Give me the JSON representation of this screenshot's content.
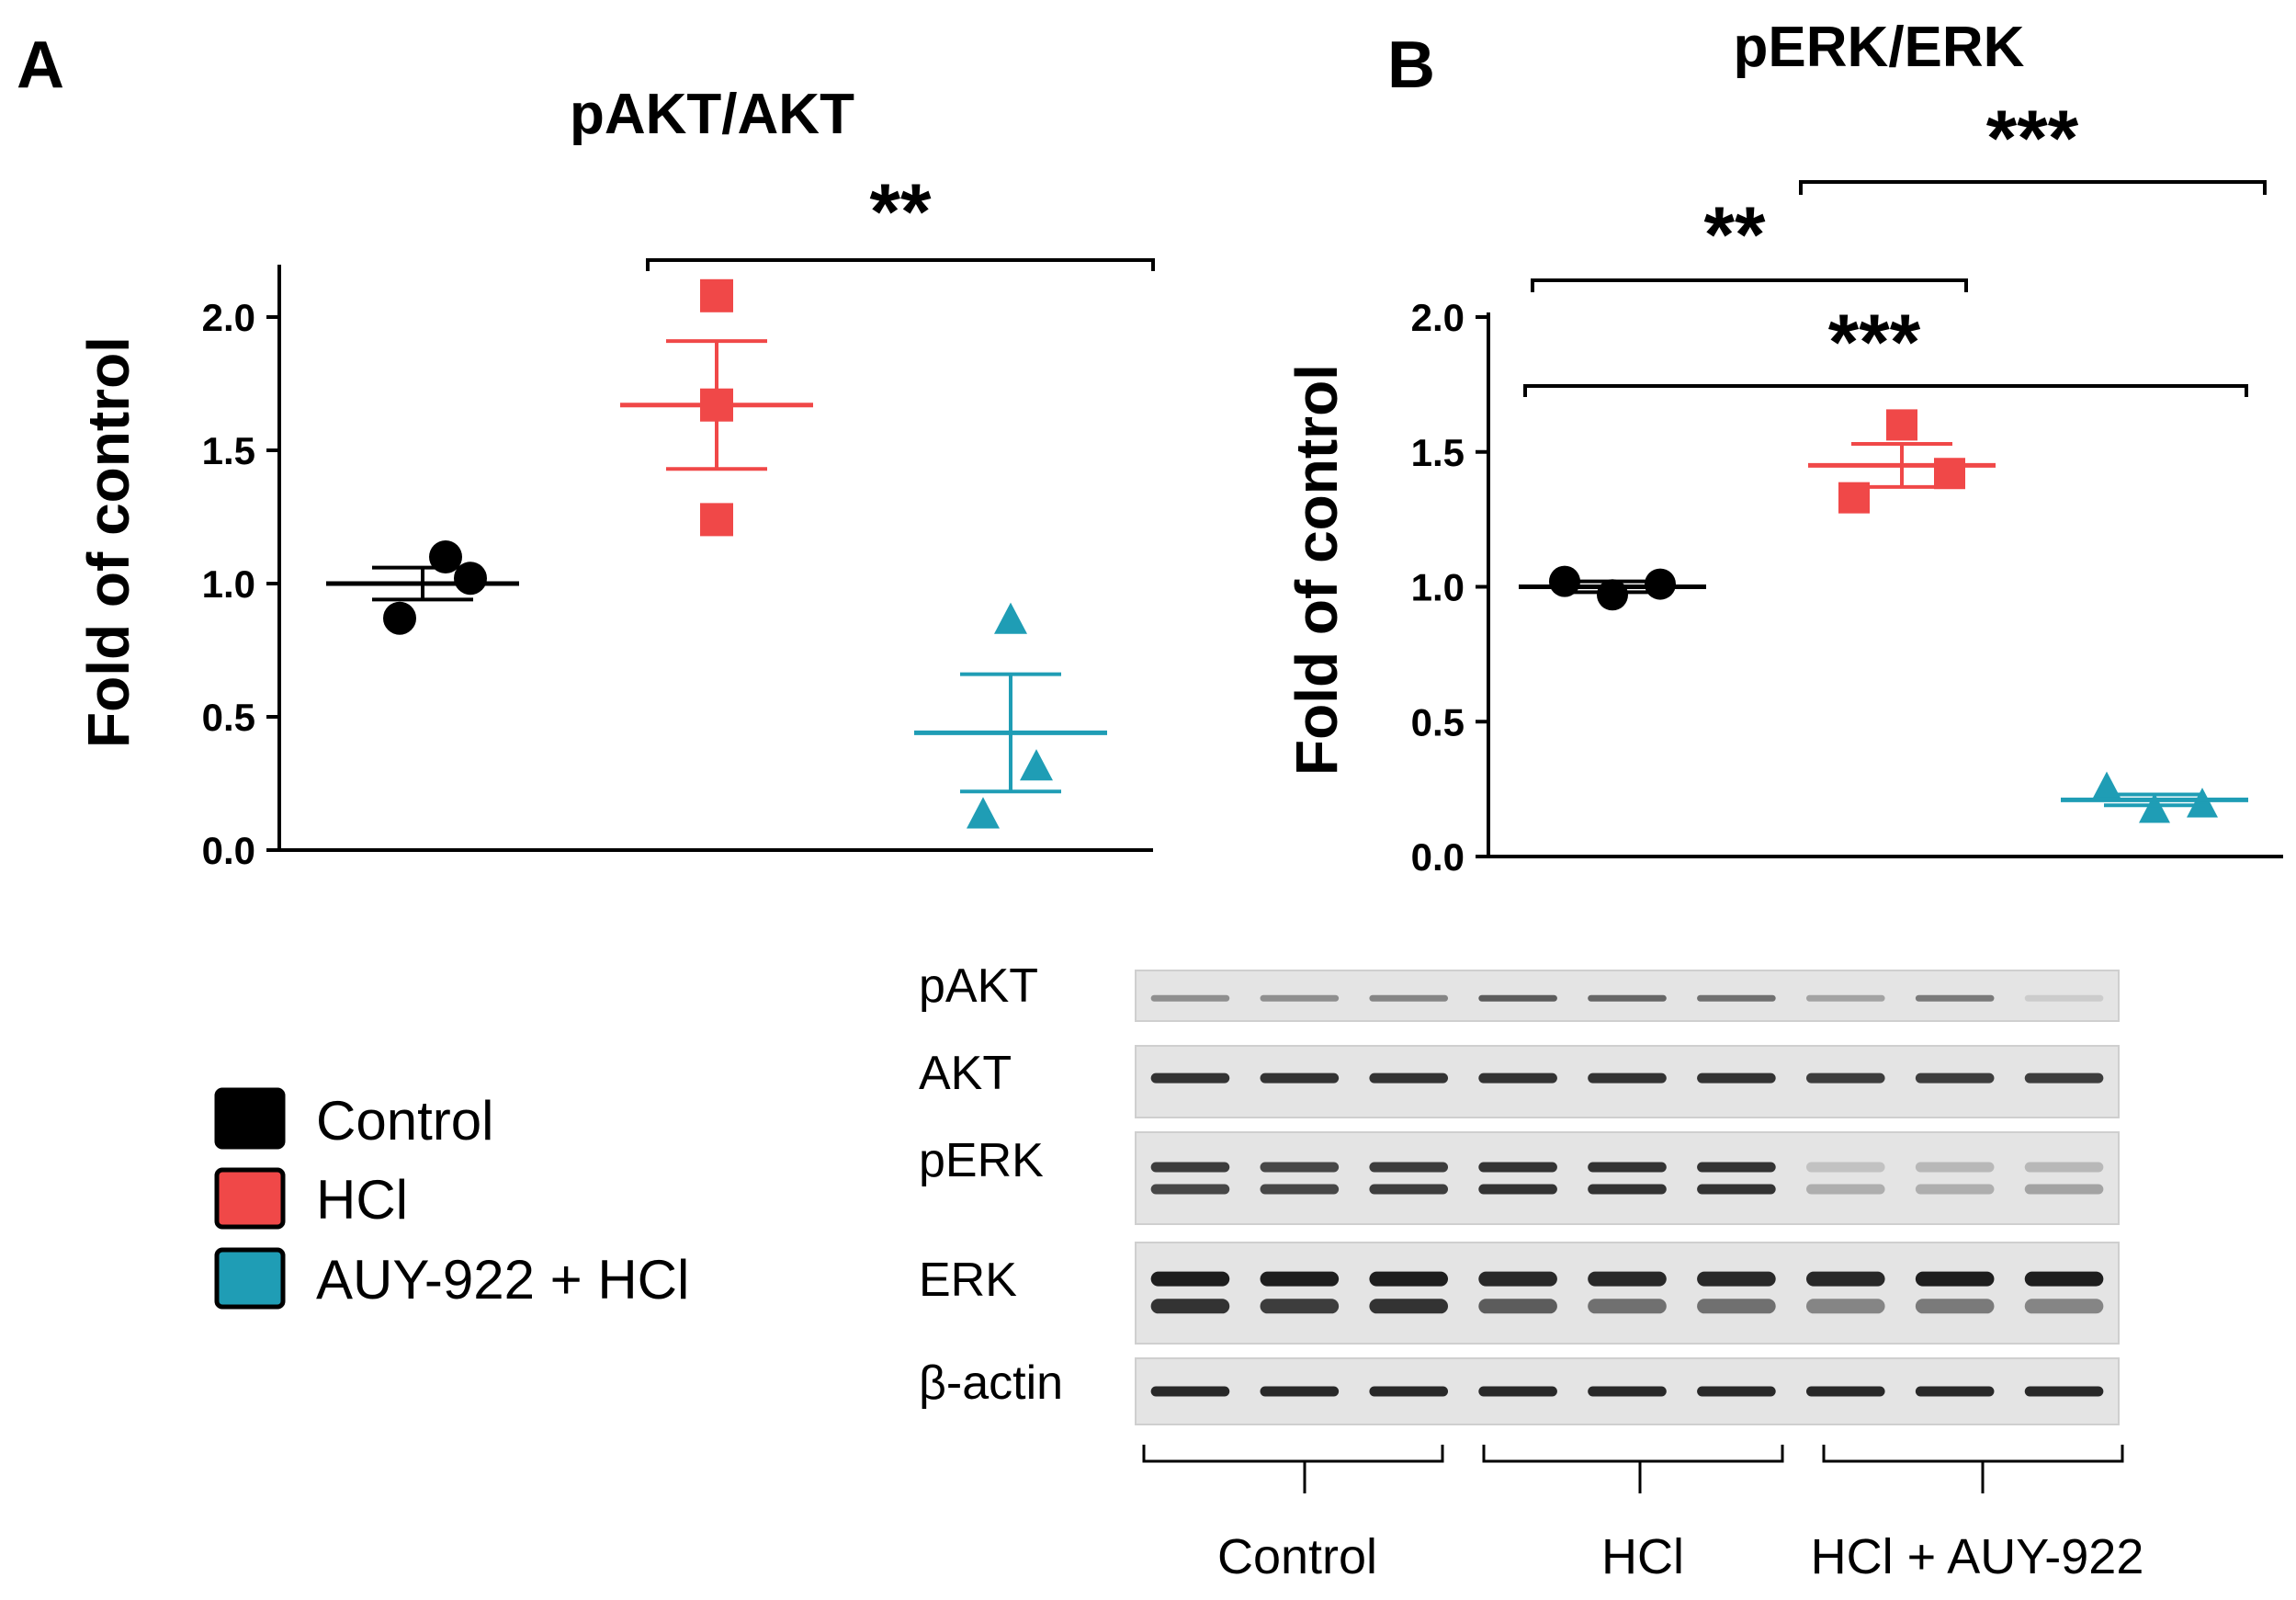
{
  "panels": {
    "a": {
      "letter": "A",
      "title": "pAKT/AKT",
      "ylabel": "Fold of control"
    },
    "b": {
      "letter": "B",
      "title": "pERK/ERK",
      "ylabel": "Fold of control"
    }
  },
  "chart_data": [
    {
      "type": "scatter",
      "title": "pAKT/AKT",
      "xlabel": "",
      "ylabel": "Fold of control",
      "ylim": [
        0,
        2.2
      ],
      "yticks": [
        "0.0",
        "0.5",
        "1.0",
        "1.5",
        "2.0"
      ],
      "grid": false,
      "series": [
        {
          "name": "Control",
          "points": [
            0.87,
            1.1,
            1.02
          ],
          "mean": 1.0,
          "sem": 0.06
        },
        {
          "name": "HCl",
          "points": [
            2.08,
            1.67,
            1.24
          ],
          "mean": 1.67,
          "sem": 0.24
        },
        {
          "name": "AUY-922 + HCl",
          "points": [
            0.87,
            0.32,
            0.14
          ],
          "mean": 0.44,
          "sem": 0.22
        }
      ],
      "significance": [
        {
          "from": "HCl",
          "to": "AUY-922 + HCl",
          "label": "**"
        }
      ]
    },
    {
      "type": "scatter",
      "title": "pERK/ERK",
      "xlabel": "",
      "ylabel": "Fold of control",
      "ylim": [
        0,
        2.0
      ],
      "yticks": [
        "0.0",
        "0.5",
        "1.0",
        "1.5",
        "2.0"
      ],
      "grid": false,
      "series": [
        {
          "name": "Control",
          "points": [
            1.02,
            0.97,
            1.01
          ],
          "mean": 1.0,
          "sem": 0.02
        },
        {
          "name": "HCl",
          "points": [
            1.33,
            1.6,
            1.42
          ],
          "mean": 1.45,
          "sem": 0.08
        },
        {
          "name": "AUY-922 + HCl",
          "points": [
            0.26,
            0.18,
            0.2
          ],
          "mean": 0.21,
          "sem": 0.02
        }
      ],
      "significance": [
        {
          "from": "HCl",
          "to": "AUY-922 + HCl",
          "label": "***"
        },
        {
          "from": "Control",
          "to": "HCl",
          "label": "**"
        },
        {
          "from": "Control",
          "to": "AUY-922 + HCl",
          "label": "***"
        }
      ]
    }
  ],
  "legend": {
    "items": [
      {
        "label": "Control",
        "color": "#000000"
      },
      {
        "label": "HCl",
        "color": "#f04848"
      },
      {
        "label": "AUY-922 + HCl",
        "color": "#1f9db5"
      }
    ]
  },
  "blot": {
    "labels": [
      "pAKT",
      "AKT",
      "pERK",
      "ERK",
      "β-actin"
    ],
    "groups": [
      "Control",
      "HCl",
      "HCl + AUY-922"
    ],
    "intensity": {
      "pAKT": [
        [
          0.45
        ],
        [
          0.45
        ],
        [
          0.5
        ],
        [
          0.7
        ],
        [
          0.65
        ],
        [
          0.6
        ],
        [
          0.35
        ],
        [
          0.55
        ],
        [
          0.15
        ]
      ],
      "AKT": [
        [
          0.9
        ],
        [
          0.9
        ],
        [
          0.9
        ],
        [
          0.9
        ],
        [
          0.9
        ],
        [
          0.9
        ],
        [
          0.85
        ],
        [
          0.85
        ],
        [
          0.85
        ]
      ],
      "pERK": [
        [
          0.85,
          0.8
        ],
        [
          0.8,
          0.8
        ],
        [
          0.85,
          0.85
        ],
        [
          0.9,
          0.9
        ],
        [
          0.9,
          0.9
        ],
        [
          0.9,
          0.9
        ],
        [
          0.2,
          0.3
        ],
        [
          0.25,
          0.3
        ],
        [
          0.25,
          0.35
        ]
      ],
      "ERK": [
        [
          1,
          0.9
        ],
        [
          1,
          0.85
        ],
        [
          1,
          0.9
        ],
        [
          0.95,
          0.7
        ],
        [
          0.95,
          0.6
        ],
        [
          0.95,
          0.6
        ],
        [
          0.95,
          0.5
        ],
        [
          1,
          0.55
        ],
        [
          1,
          0.5
        ]
      ],
      "β-actin": [
        [
          0.95
        ],
        [
          0.95
        ],
        [
          0.95
        ],
        [
          0.95
        ],
        [
          0.95
        ],
        [
          0.95
        ],
        [
          0.95
        ],
        [
          0.95
        ],
        [
          0.95
        ]
      ]
    }
  },
  "colors": {
    "control": "#000000",
    "hcl": "#f04848",
    "auy": "#1f9db5",
    "axis": "#000000"
  }
}
